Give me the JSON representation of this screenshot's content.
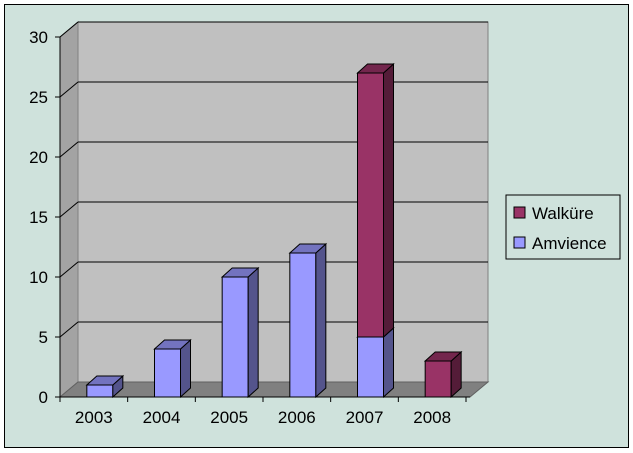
{
  "chart_data": {
    "type": "bar",
    "stacked": true,
    "three_d": true,
    "title": "",
    "xlabel": "",
    "ylabel": "",
    "categories": [
      "2003",
      "2004",
      "2005",
      "2006",
      "2007",
      "2008"
    ],
    "series": [
      {
        "name": "Amvience",
        "values": [
          1,
          4,
          10,
          12,
          5,
          0
        ],
        "color": "#9999ff"
      },
      {
        "name": "Walküre",
        "values": [
          0,
          0,
          0,
          0,
          22,
          3
        ],
        "color": "#993366"
      }
    ],
    "ylim": [
      0,
      30
    ],
    "yticks": [
      0,
      5,
      10,
      15,
      20,
      25,
      30
    ],
    "grid": true,
    "legend_position": "right",
    "legend_order": [
      "Walküre",
      "Amvience"
    ],
    "colors": {
      "background": "#cfe2dc",
      "plot_wall": "#c0c0c0",
      "floor": "#808080",
      "gridline": "#000000"
    }
  }
}
